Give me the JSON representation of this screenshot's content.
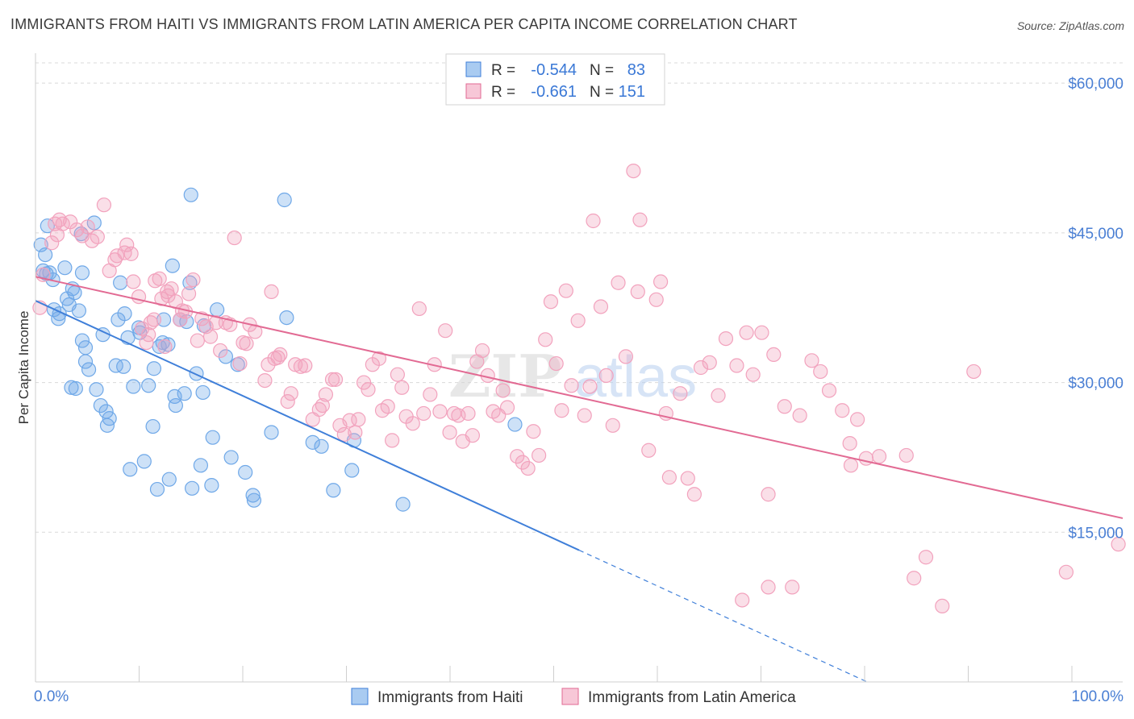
{
  "chart_data": {
    "type": "scatter",
    "title": "IMMIGRANTS FROM HAITI VS IMMIGRANTS FROM LATIN AMERICA PER CAPITA INCOME CORRELATION CHART",
    "source": "Source: ZipAtlas.com",
    "ylabel": "Per Capita Income",
    "xlim": [
      0,
      100
    ],
    "ylim": [
      0,
      63000
    ],
    "x_tick_labels": [
      "0.0%",
      "100.0%"
    ],
    "y_ticks": [
      {
        "value": 15000,
        "label": "$15,000"
      },
      {
        "value": 30000,
        "label": "$30,000"
      },
      {
        "value": 45000,
        "label": "$45,000"
      },
      {
        "value": 60000,
        "label": "$60,000"
      }
    ],
    "grid": true,
    "legend_position": "top-center",
    "watermark": "ZIPatlas",
    "stats": [
      {
        "r_label": "R =",
        "r_value": "-0.544",
        "n_label": "N =",
        "n_value": "83"
      },
      {
        "r_label": "R =",
        "r_value": "-0.661",
        "n_label": "N =",
        "n_value": "151"
      }
    ],
    "series": [
      {
        "name": "Immigrants from Haiti",
        "color": "#6fa8e8",
        "line_color": "#3f7fd9",
        "trend": {
          "x0": 0,
          "y0": 38200,
          "x1": 50,
          "y1": 13200,
          "dash_to_x": 76.5,
          "dash_to_y": 0
        },
        "points": [
          [
            0.5,
            43800
          ],
          [
            0.7,
            41200
          ],
          [
            0.9,
            42800
          ],
          [
            1.0,
            40900
          ],
          [
            1.1,
            45700
          ],
          [
            1.3,
            41000
          ],
          [
            1.6,
            40300
          ],
          [
            1.7,
            37300
          ],
          [
            2.1,
            36400
          ],
          [
            2.2,
            36900
          ],
          [
            2.7,
            41500
          ],
          [
            2.9,
            38400
          ],
          [
            3.1,
            37800
          ],
          [
            3.3,
            29500
          ],
          [
            3.4,
            39400
          ],
          [
            3.6,
            39000
          ],
          [
            3.7,
            29400
          ],
          [
            4.0,
            37200
          ],
          [
            4.2,
            44900
          ],
          [
            4.3,
            41000
          ],
          [
            4.3,
            34200
          ],
          [
            4.6,
            32100
          ],
          [
            4.6,
            33500
          ],
          [
            4.9,
            31300
          ],
          [
            5.4,
            46000
          ],
          [
            5.6,
            29300
          ],
          [
            6.0,
            27700
          ],
          [
            6.2,
            34800
          ],
          [
            6.5,
            27100
          ],
          [
            6.6,
            25700
          ],
          [
            6.8,
            26400
          ],
          [
            7.4,
            31700
          ],
          [
            7.6,
            36300
          ],
          [
            7.8,
            40000
          ],
          [
            8.1,
            31600
          ],
          [
            8.2,
            36900
          ],
          [
            8.5,
            34500
          ],
          [
            8.7,
            21300
          ],
          [
            9.0,
            29600
          ],
          [
            9.5,
            35500
          ],
          [
            9.6,
            35000
          ],
          [
            10.0,
            22100
          ],
          [
            10.4,
            29700
          ],
          [
            10.8,
            25600
          ],
          [
            10.9,
            31400
          ],
          [
            11.2,
            19300
          ],
          [
            11.4,
            33600
          ],
          [
            11.7,
            34000
          ],
          [
            11.8,
            36300
          ],
          [
            12.2,
            33800
          ],
          [
            12.3,
            20300
          ],
          [
            12.6,
            41700
          ],
          [
            12.8,
            28600
          ],
          [
            12.9,
            27700
          ],
          [
            13.3,
            36300
          ],
          [
            13.7,
            28900
          ],
          [
            13.9,
            36100
          ],
          [
            14.2,
            40000
          ],
          [
            14.3,
            48800
          ],
          [
            14.4,
            19400
          ],
          [
            14.8,
            30900
          ],
          [
            15.2,
            21700
          ],
          [
            15.4,
            29000
          ],
          [
            16.2,
            19700
          ],
          [
            16.3,
            24500
          ],
          [
            16.7,
            37300
          ],
          [
            17.5,
            32600
          ],
          [
            18.0,
            22500
          ],
          [
            18.6,
            31800
          ],
          [
            19.3,
            21000
          ],
          [
            20.0,
            18700
          ],
          [
            20.1,
            18200
          ],
          [
            21.7,
            25000
          ],
          [
            22.9,
            48300
          ],
          [
            23.1,
            36500
          ],
          [
            25.5,
            24000
          ],
          [
            26.3,
            23600
          ],
          [
            27.4,
            19200
          ],
          [
            29.1,
            21200
          ],
          [
            29.3,
            24200
          ],
          [
            33.8,
            17800
          ],
          [
            44.1,
            25800
          ],
          [
            15.5,
            35700
          ]
        ]
      },
      {
        "name": "Immigrants from Latin America",
        "color": "#f2a2bd",
        "line_color": "#e26a93",
        "trend": {
          "x0": 0,
          "y0": 40600,
          "x1": 100,
          "y1": 16400
        },
        "points": [
          [
            0.4,
            37500
          ],
          [
            0.7,
            40800
          ],
          [
            1.5,
            44000
          ],
          [
            1.8,
            45900
          ],
          [
            2.0,
            44800
          ],
          [
            2.2,
            46300
          ],
          [
            2.5,
            45900
          ],
          [
            3.2,
            46100
          ],
          [
            3.8,
            45300
          ],
          [
            4.3,
            44700
          ],
          [
            4.8,
            45600
          ],
          [
            5.2,
            44200
          ],
          [
            5.7,
            44600
          ],
          [
            6.3,
            47800
          ],
          [
            6.8,
            41200
          ],
          [
            7.3,
            42300
          ],
          [
            7.5,
            42700
          ],
          [
            8.2,
            43000
          ],
          [
            8.4,
            43800
          ],
          [
            8.8,
            42900
          ],
          [
            9.0,
            40100
          ],
          [
            9.5,
            38600
          ],
          [
            9.8,
            35400
          ],
          [
            10.2,
            34000
          ],
          [
            10.4,
            34800
          ],
          [
            10.6,
            36000
          ],
          [
            10.9,
            36300
          ],
          [
            11.0,
            40200
          ],
          [
            11.4,
            40400
          ],
          [
            11.6,
            38400
          ],
          [
            11.9,
            33600
          ],
          [
            12.1,
            39100
          ],
          [
            12.2,
            38700
          ],
          [
            12.5,
            39400
          ],
          [
            12.9,
            38100
          ],
          [
            13.3,
            36300
          ],
          [
            13.5,
            37200
          ],
          [
            13.8,
            37100
          ],
          [
            14.1,
            38900
          ],
          [
            14.5,
            40300
          ],
          [
            14.9,
            34200
          ],
          [
            15.3,
            36400
          ],
          [
            15.7,
            35600
          ],
          [
            16.1,
            34600
          ],
          [
            16.6,
            36000
          ],
          [
            17.0,
            33200
          ],
          [
            17.5,
            36000
          ],
          [
            17.9,
            35800
          ],
          [
            18.3,
            44500
          ],
          [
            18.8,
            31900
          ],
          [
            19.1,
            34000
          ],
          [
            19.4,
            33900
          ],
          [
            19.7,
            35800
          ],
          [
            20.2,
            35100
          ],
          [
            21.1,
            30200
          ],
          [
            21.4,
            31800
          ],
          [
            21.7,
            39100
          ],
          [
            22.0,
            32400
          ],
          [
            22.3,
            32500
          ],
          [
            22.5,
            32800
          ],
          [
            23.2,
            28100
          ],
          [
            23.5,
            28900
          ],
          [
            23.9,
            31800
          ],
          [
            24.4,
            31600
          ],
          [
            24.8,
            31700
          ],
          [
            25.5,
            26300
          ],
          [
            26.1,
            27300
          ],
          [
            26.4,
            27700
          ],
          [
            26.7,
            28800
          ],
          [
            27.3,
            30300
          ],
          [
            27.6,
            30300
          ],
          [
            28.0,
            25700
          ],
          [
            28.4,
            24800
          ],
          [
            28.9,
            26200
          ],
          [
            29.4,
            25000
          ],
          [
            29.7,
            26300
          ],
          [
            30.2,
            30000
          ],
          [
            30.6,
            29300
          ],
          [
            31.0,
            31800
          ],
          [
            31.6,
            32400
          ],
          [
            31.9,
            27200
          ],
          [
            32.4,
            27600
          ],
          [
            32.8,
            24200
          ],
          [
            33.3,
            30800
          ],
          [
            33.7,
            29500
          ],
          [
            34.1,
            26600
          ],
          [
            34.7,
            25900
          ],
          [
            35.3,
            37400
          ],
          [
            35.7,
            26900
          ],
          [
            36.3,
            28800
          ],
          [
            36.7,
            31800
          ],
          [
            37.2,
            27100
          ],
          [
            37.7,
            35200
          ],
          [
            38.1,
            25000
          ],
          [
            38.5,
            26900
          ],
          [
            38.9,
            26700
          ],
          [
            39.3,
            24100
          ],
          [
            39.8,
            26900
          ],
          [
            40.2,
            24700
          ],
          [
            40.6,
            32100
          ],
          [
            41.1,
            33200
          ],
          [
            41.6,
            30700
          ],
          [
            42.1,
            27100
          ],
          [
            42.6,
            26700
          ],
          [
            43.0,
            29200
          ],
          [
            43.4,
            27500
          ],
          [
            44.3,
            22600
          ],
          [
            44.8,
            22000
          ],
          [
            45.3,
            21400
          ],
          [
            45.8,
            25100
          ],
          [
            46.3,
            22700
          ],
          [
            46.9,
            34300
          ],
          [
            47.4,
            38100
          ],
          [
            47.9,
            31900
          ],
          [
            48.4,
            27200
          ],
          [
            48.8,
            39200
          ],
          [
            49.3,
            29700
          ],
          [
            49.9,
            36200
          ],
          [
            50.5,
            26700
          ],
          [
            51.0,
            29600
          ],
          [
            51.3,
            46200
          ],
          [
            52.0,
            37600
          ],
          [
            52.5,
            30700
          ],
          [
            53.1,
            25700
          ],
          [
            53.6,
            40000
          ],
          [
            54.3,
            32600
          ],
          [
            55.0,
            51200
          ],
          [
            55.4,
            39100
          ],
          [
            55.6,
            46300
          ],
          [
            56.4,
            23200
          ],
          [
            57.1,
            38300
          ],
          [
            57.5,
            40100
          ],
          [
            58.0,
            26900
          ],
          [
            58.3,
            20500
          ],
          [
            59.3,
            28900
          ],
          [
            60.0,
            20400
          ],
          [
            60.6,
            18800
          ],
          [
            61.2,
            31500
          ],
          [
            62.0,
            32000
          ],
          [
            62.8,
            28700
          ],
          [
            63.5,
            34400
          ],
          [
            64.5,
            31700
          ],
          [
            65.4,
            35000
          ],
          [
            66.0,
            30800
          ],
          [
            66.8,
            35000
          ],
          [
            67.4,
            18800
          ],
          [
            67.9,
            32800
          ],
          [
            68.9,
            27600
          ],
          [
            69.6,
            9500
          ],
          [
            70.3,
            26700
          ],
          [
            71.4,
            32200
          ],
          [
            72.2,
            31100
          ],
          [
            73.0,
            29200
          ],
          [
            74.2,
            27200
          ],
          [
            74.9,
            23900
          ],
          [
            75.6,
            26300
          ],
          [
            76.4,
            22400
          ],
          [
            77.6,
            22600
          ],
          [
            80.1,
            22700
          ],
          [
            80.8,
            10400
          ],
          [
            81.9,
            12500
          ],
          [
            83.4,
            7600
          ],
          [
            86.3,
            31100
          ],
          [
            94.8,
            11000
          ],
          [
            67.4,
            9500
          ],
          [
            65.0,
            8200
          ],
          [
            75.0,
            21700
          ],
          [
            99.6,
            13800
          ]
        ]
      }
    ]
  }
}
